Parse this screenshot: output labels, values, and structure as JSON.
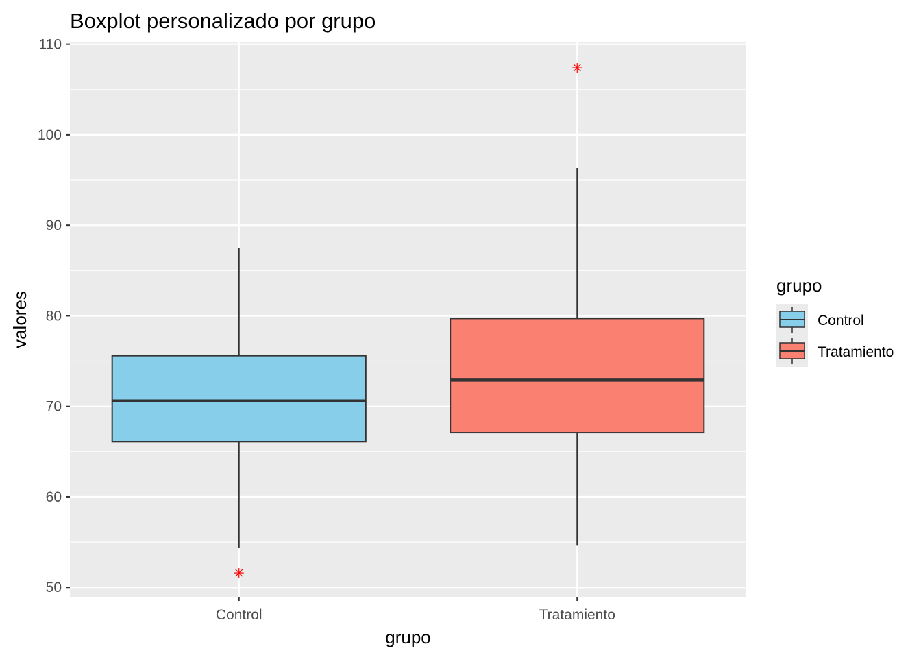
{
  "chart_data": {
    "type": "boxplot",
    "title": "Boxplot personalizado por grupo",
    "xlabel": "grupo",
    "ylabel": "valores",
    "ylim": [
      48.96,
      110.2
    ],
    "yticks": [
      50,
      60,
      70,
      80,
      90,
      100,
      110
    ],
    "categories": [
      "Control",
      "Tratamiento"
    ],
    "series": [
      {
        "name": "Control",
        "fill": "#87CEEB",
        "whisker_low": 54.4,
        "q1": 66.1,
        "median": 70.6,
        "q3": 75.6,
        "whisker_high": 87.5,
        "outliers": [
          51.6
        ]
      },
      {
        "name": "Tratamiento",
        "fill": "#FA8072",
        "whisker_low": 54.6,
        "q1": 67.1,
        "median": 72.9,
        "q3": 79.7,
        "whisker_high": 96.3,
        "outliers": [
          107.4
        ]
      }
    ],
    "outlier_color": "#FF0000",
    "grid": true,
    "legend": {
      "title": "grupo",
      "position": "right",
      "entries": [
        "Control",
        "Tratamiento"
      ]
    }
  }
}
